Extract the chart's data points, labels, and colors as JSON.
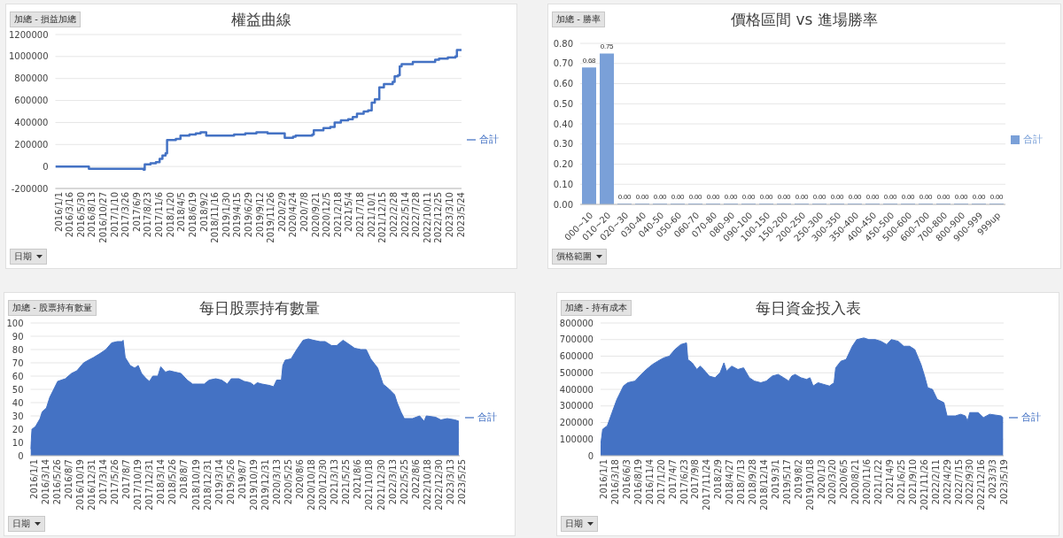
{
  "chart_data": [
    {
      "type": "step",
      "title": "權益曲線",
      "annotations": [
        "加總 - 損益加總",
        "日期"
      ],
      "legend": "right",
      "grid": "y",
      "xlim": [
        "2016-01-01",
        "2023-06-20"
      ],
      "xticks": [
        {
          "value": "2016-01-01",
          "label": "2016/1/1"
        },
        {
          "value": "2016-03-16",
          "label": "2016/3/16"
        },
        {
          "value": "2016-05-30",
          "label": "2016/5/30"
        },
        {
          "value": "2016-08-13",
          "label": "2016/8/13"
        },
        {
          "value": "2016-10-27",
          "label": "2016/10/27"
        },
        {
          "value": "2017-01-10",
          "label": "2017/1/10"
        },
        {
          "value": "2017-03-26",
          "label": "2017/3/26"
        },
        {
          "value": "2017-06-09",
          "label": "2017/6/9"
        },
        {
          "value": "2017-08-23",
          "label": "2017/8/23"
        },
        {
          "value": "2017-11-06",
          "label": "2017/11/6"
        },
        {
          "value": "2018-01-20",
          "label": "2018/1/20"
        },
        {
          "value": "2018-04-05",
          "label": "2018/4/5"
        },
        {
          "value": "2018-06-19",
          "label": "2018/6/19"
        },
        {
          "value": "2018-09-02",
          "label": "2018/9/2"
        },
        {
          "value": "2018-11-16",
          "label": "2018/11/16"
        },
        {
          "value": "2019-01-30",
          "label": "2019/1/30"
        },
        {
          "value": "2019-04-15",
          "label": "2019/4/15"
        },
        {
          "value": "2019-06-29",
          "label": "2019/6/29"
        },
        {
          "value": "2019-09-12",
          "label": "2019/9/12"
        },
        {
          "value": "2019-11-26",
          "label": "2019/11/26"
        },
        {
          "value": "2020-02-09",
          "label": "2020/2/9"
        },
        {
          "value": "2020-04-24",
          "label": "2020/4/24"
        },
        {
          "value": "2020-07-08",
          "label": "2020/7/8"
        },
        {
          "value": "2020-09-21",
          "label": "2020/9/21"
        },
        {
          "value": "2020-12-05",
          "label": "2020/12/5"
        },
        {
          "value": "2021-02-18",
          "label": "2021/2/18"
        },
        {
          "value": "2021-05-04",
          "label": "2021/5/4"
        },
        {
          "value": "2021-07-18",
          "label": "2021/7/18"
        },
        {
          "value": "2021-10-01",
          "label": "2021/10/1"
        },
        {
          "value": "2021-12-15",
          "label": "2021/12/15"
        },
        {
          "value": "2022-02-28",
          "label": "2022/2/28"
        },
        {
          "value": "2022-05-14",
          "label": "2022/5/14"
        },
        {
          "value": "2022-07-28",
          "label": "2022/7/28"
        },
        {
          "value": "2022-10-11",
          "label": "2022/10/11"
        },
        {
          "value": "2022-12-25",
          "label": "2022/12/25"
        },
        {
          "value": "2023-03-10",
          "label": "2023/3/10"
        },
        {
          "value": "2023-05-24",
          "label": "2023/5/24"
        }
      ],
      "ylim": [
        -200000,
        1200000
      ],
      "yticks": [
        -200000,
        0,
        200000,
        400000,
        600000,
        800000,
        1000000,
        1200000
      ],
      "series": [
        {
          "name": "合計",
          "color": "#4472c4",
          "x": [
            "2016-01-01",
            "2016-05-01",
            "2016-08-13",
            "2017-03-26",
            "2017-06-09",
            "2017-08-15",
            "2017-08-23",
            "2017-10-01",
            "2017-11-06",
            "2017-12-01",
            "2017-12-20",
            "2018-01-10",
            "2018-01-20",
            "2018-03-20",
            "2018-04-20",
            "2018-06-19",
            "2018-08-01",
            "2018-09-02",
            "2018-10-10",
            "2018-11-16",
            "2019-04-15",
            "2019-06-29",
            "2019-09-12",
            "2019-11-26",
            "2020-02-20",
            "2020-03-20",
            "2020-05-15",
            "2020-06-01",
            "2020-09-21",
            "2020-10-01",
            "2020-12-05",
            "2021-01-20",
            "2021-02-18",
            "2021-04-01",
            "2021-05-20",
            "2021-06-20",
            "2021-07-18",
            "2021-09-01",
            "2021-10-01",
            "2021-10-25",
            "2021-11-15",
            "2021-12-15",
            "2022-01-15",
            "2022-03-15",
            "2022-03-28",
            "2022-04-20",
            "2022-05-01",
            "2022-05-14",
            "2022-07-28",
            "2022-10-11",
            "2022-12-25",
            "2023-01-20",
            "2023-03-20",
            "2023-05-10",
            "2023-05-20",
            "2023-06-20"
          ],
          "values": [
            0,
            0,
            -20000,
            -20000,
            -20000,
            -30000,
            20000,
            30000,
            40000,
            70000,
            100000,
            120000,
            240000,
            250000,
            280000,
            290000,
            300000,
            310000,
            280000,
            280000,
            290000,
            300000,
            310000,
            300000,
            300000,
            260000,
            270000,
            280000,
            290000,
            330000,
            350000,
            360000,
            400000,
            420000,
            430000,
            450000,
            480000,
            500000,
            510000,
            580000,
            610000,
            720000,
            750000,
            770000,
            820000,
            830000,
            910000,
            930000,
            950000,
            950000,
            970000,
            980000,
            990000,
            1000000,
            1060000,
            1060000
          ]
        }
      ]
    },
    {
      "type": "bar",
      "title": "價格區間 vs 進場勝率",
      "annotations": [
        "加總 - 勝率",
        "價格範圍"
      ],
      "legend": "right",
      "grid": "y",
      "categories": [
        "000~10",
        "010~20",
        "020~30",
        "030-40",
        "040-50",
        "050-60",
        "060-70",
        "070-80",
        "080-90",
        "090-100",
        "100-150",
        "150-200",
        "200-250",
        "250-300",
        "300-350",
        "350-400",
        "400-450",
        "450-500",
        "500-600",
        "600-700",
        "700-800",
        "800-900",
        "900-999",
        "999up"
      ],
      "ylim": [
        0,
        0.8
      ],
      "yticks": [
        {
          "value": 0,
          "label": "0.00"
        },
        {
          "value": 0.1,
          "label": "0.10"
        },
        {
          "value": 0.2,
          "label": "0.20"
        },
        {
          "value": 0.3,
          "label": "0.30"
        },
        {
          "value": 0.4,
          "label": "0.40"
        },
        {
          "value": 0.5,
          "label": "0.50"
        },
        {
          "value": 0.6,
          "label": "0.60"
        },
        {
          "value": 0.7,
          "label": "0.70"
        },
        {
          "value": 0.8,
          "label": "0.80"
        }
      ],
      "series": [
        {
          "name": "合計",
          "color": "#7aa0d8",
          "values": [
            0.68,
            0.75,
            0,
            0,
            0,
            0,
            0,
            0,
            0,
            0,
            0,
            0,
            0,
            0,
            0,
            0,
            0,
            0,
            0,
            0,
            0,
            0,
            0,
            0
          ],
          "value_labels": [
            "0.68",
            "0.75",
            "0.00",
            "0.00",
            "0.00",
            "0.00",
            "0.00",
            "0.00",
            "0.00",
            "0.00",
            "0.00",
            "0.00",
            "0.00",
            "0.00",
            "0.00",
            "0.00",
            "0.00",
            "0.00",
            "0.00",
            "0.00",
            "0.00",
            "0.00",
            "0.00",
            "0.00"
          ]
        }
      ]
    },
    {
      "type": "area",
      "title": "每日股票持有數量",
      "annotations": [
        "加總 - 股票持有數量",
        "日期"
      ],
      "legend": "right",
      "grid": "y",
      "xlim": [
        "2016-01-01",
        "2023-05-31"
      ],
      "xticks": [
        {
          "value": "2016-01-01",
          "label": "2016/1/1"
        },
        {
          "value": "2016-03-14",
          "label": "2016/3/14"
        },
        {
          "value": "2016-05-26",
          "label": "2016/5/26"
        },
        {
          "value": "2016-08-07",
          "label": "2016/8/7"
        },
        {
          "value": "2016-10-19",
          "label": "2016/10/19"
        },
        {
          "value": "2016-12-31",
          "label": "2016/12/31"
        },
        {
          "value": "2017-03-14",
          "label": "2017/3/14"
        },
        {
          "value": "2017-05-26",
          "label": "2017/5/26"
        },
        {
          "value": "2017-08-07",
          "label": "2017/8/7"
        },
        {
          "value": "2017-10-19",
          "label": "2017/10/19"
        },
        {
          "value": "2017-12-31",
          "label": "2017/12/31"
        },
        {
          "value": "2018-03-14",
          "label": "2018/3/14"
        },
        {
          "value": "2018-05-26",
          "label": "2018/5/26"
        },
        {
          "value": "2018-08-07",
          "label": "2018/8/7"
        },
        {
          "value": "2018-10-19",
          "label": "2018/10/19"
        },
        {
          "value": "2018-12-31",
          "label": "2018/12/31"
        },
        {
          "value": "2019-03-14",
          "label": "2019/3/14"
        },
        {
          "value": "2019-05-26",
          "label": "2019/5/26"
        },
        {
          "value": "2019-08-07",
          "label": "2019/8/7"
        },
        {
          "value": "2019-10-19",
          "label": "2019/10/19"
        },
        {
          "value": "2019-12-31",
          "label": "2019/12/31"
        },
        {
          "value": "2020-03-13",
          "label": "2020/3/13"
        },
        {
          "value": "2020-05-25",
          "label": "2020/5/25"
        },
        {
          "value": "2020-08-06",
          "label": "2020/8/6"
        },
        {
          "value": "2020-10-18",
          "label": "2020/10/18"
        },
        {
          "value": "2020-12-30",
          "label": "2020/12/30"
        },
        {
          "value": "2021-03-13",
          "label": "2021/3/13"
        },
        {
          "value": "2021-05-25",
          "label": "2021/5/25"
        },
        {
          "value": "2021-08-06",
          "label": "2021/8/6"
        },
        {
          "value": "2021-10-18",
          "label": "2021/10/18"
        },
        {
          "value": "2021-12-30",
          "label": "2021/12/30"
        },
        {
          "value": "2022-03-13",
          "label": "2022/3/13"
        },
        {
          "value": "2022-05-25",
          "label": "2022/5/25"
        },
        {
          "value": "2022-08-06",
          "label": "2022/8/6"
        },
        {
          "value": "2022-10-18",
          "label": "2022/10/18"
        },
        {
          "value": "2022-12-30",
          "label": "2022/12/30"
        },
        {
          "value": "2023-03-13",
          "label": "2023/3/13"
        },
        {
          "value": "2023-05-25",
          "label": "2023/5/25"
        }
      ],
      "ylim": [
        0,
        100
      ],
      "yticks": [
        0,
        10,
        20,
        30,
        40,
        50,
        60,
        70,
        80,
        90,
        100
      ],
      "series": [
        {
          "name": "合計",
          "color": "#4472c4",
          "x": [
            "2016-01-01",
            "2016-01-10",
            "2016-02-01",
            "2016-03-01",
            "2016-03-14",
            "2016-04-10",
            "2016-05-01",
            "2016-05-26",
            "2016-06-20",
            "2016-08-07",
            "2016-09-15",
            "2016-10-19",
            "2016-12-01",
            "2016-12-31",
            "2017-02-01",
            "2017-03-14",
            "2017-04-20",
            "2017-05-26",
            "2017-07-01",
            "2017-08-01",
            "2017-08-07",
            "2017-08-20",
            "2017-09-20",
            "2017-10-19",
            "2017-11-10",
            "2017-12-01",
            "2017-12-31",
            "2018-01-20",
            "2018-02-10",
            "2018-03-14",
            "2018-04-01",
            "2018-05-01",
            "2018-05-26",
            "2018-07-01",
            "2018-08-07",
            "2018-09-15",
            "2018-10-19",
            "2018-11-20",
            "2018-12-31",
            "2019-02-01",
            "2019-03-14",
            "2019-04-20",
            "2019-05-26",
            "2019-06-20",
            "2019-08-07",
            "2019-09-10",
            "2019-10-19",
            "2019-11-10",
            "2019-12-01",
            "2019-12-31",
            "2020-02-15",
            "2020-03-13",
            "2020-04-01",
            "2020-05-01",
            "2020-05-10",
            "2020-05-25",
            "2020-07-01",
            "2020-08-06",
            "2020-09-15",
            "2020-10-18",
            "2020-11-20",
            "2020-12-30",
            "2021-02-01",
            "2021-03-13",
            "2021-04-15",
            "2021-05-25",
            "2021-07-01",
            "2021-08-06",
            "2021-09-15",
            "2021-10-18",
            "2021-11-15",
            "2021-12-30",
            "2022-02-01",
            "2022-03-13",
            "2022-04-15",
            "2022-05-01",
            "2022-05-25",
            "2022-06-15",
            "2022-08-06",
            "2022-09-20",
            "2022-10-18",
            "2022-11-01",
            "2022-12-30",
            "2023-02-01",
            "2023-03-13",
            "2023-05-01",
            "2023-05-25"
          ],
          "values": [
            5,
            20,
            22,
            28,
            33,
            36,
            44,
            50,
            56,
            58,
            62,
            64,
            70,
            72,
            74,
            77,
            80,
            85,
            86,
            86,
            87,
            74,
            68,
            66,
            68,
            62,
            58,
            56,
            60,
            60,
            67,
            63,
            64,
            63,
            62,
            57,
            54,
            54,
            54,
            57,
            58,
            57,
            54,
            58,
            58,
            56,
            55,
            53,
            55,
            54,
            53,
            52,
            57,
            57,
            68,
            72,
            73,
            80,
            87,
            88,
            87,
            86,
            86,
            83,
            83,
            87,
            84,
            81,
            80,
            80,
            73,
            66,
            54,
            50,
            46,
            40,
            33,
            28,
            28,
            30,
            26,
            30,
            29,
            27,
            28,
            27,
            26
          ]
        }
      ]
    },
    {
      "type": "area",
      "title": "每日資金投入表",
      "annotations": [
        "加總 - 持有成本",
        "日期"
      ],
      "legend": "right",
      "grid": "y",
      "xlim": [
        "2016-01-01",
        "2023-06-05"
      ],
      "xticks": [
        {
          "value": "2016-01-01",
          "label": "2016/1/1"
        },
        {
          "value": "2016-03-18",
          "label": "2016/3/18"
        },
        {
          "value": "2016-06-03",
          "label": "2016/6/3"
        },
        {
          "value": "2016-08-19",
          "label": "2016/8/19"
        },
        {
          "value": "2016-11-04",
          "label": "2016/11/4"
        },
        {
          "value": "2017-01-20",
          "label": "2017/1/20"
        },
        {
          "value": "2017-04-07",
          "label": "2017/4/7"
        },
        {
          "value": "2017-06-23",
          "label": "2017/6/23"
        },
        {
          "value": "2017-09-08",
          "label": "2017/9/8"
        },
        {
          "value": "2017-11-24",
          "label": "2017/11/24"
        },
        {
          "value": "2018-02-09",
          "label": "2018/2/9"
        },
        {
          "value": "2018-04-27",
          "label": "2018/4/27"
        },
        {
          "value": "2018-07-13",
          "label": "2018/7/13"
        },
        {
          "value": "2018-09-28",
          "label": "2018/9/28"
        },
        {
          "value": "2018-12-14",
          "label": "2018/12/14"
        },
        {
          "value": "2019-03-01",
          "label": "2019/3/1"
        },
        {
          "value": "2019-05-17",
          "label": "2019/5/17"
        },
        {
          "value": "2019-08-02",
          "label": "2019/8/2"
        },
        {
          "value": "2019-10-18",
          "label": "2019/10/18"
        },
        {
          "value": "2020-01-03",
          "label": "2020/1/3"
        },
        {
          "value": "2020-03-20",
          "label": "2020/3/20"
        },
        {
          "value": "2020-06-05",
          "label": "2020/6/5"
        },
        {
          "value": "2020-08-21",
          "label": "2020/8/21"
        },
        {
          "value": "2020-11-06",
          "label": "2020/11/6"
        },
        {
          "value": "2021-01-22",
          "label": "2021/1/22"
        },
        {
          "value": "2021-04-09",
          "label": "2021/4/9"
        },
        {
          "value": "2021-06-25",
          "label": "2021/6/25"
        },
        {
          "value": "2021-09-10",
          "label": "2021/9/10"
        },
        {
          "value": "2021-11-26",
          "label": "2021/11/26"
        },
        {
          "value": "2022-02-11",
          "label": "2022/2/11"
        },
        {
          "value": "2022-04-29",
          "label": "2022/4/29"
        },
        {
          "value": "2022-07-15",
          "label": "2022/7/15"
        },
        {
          "value": "2022-09-30",
          "label": "2022/9/30"
        },
        {
          "value": "2022-12-16",
          "label": "2022/12/16"
        },
        {
          "value": "2023-03-03",
          "label": "2023/3/3"
        },
        {
          "value": "2023-05-19",
          "label": "2023/5/19"
        }
      ],
      "ylim": [
        0,
        800000
      ],
      "yticks": [
        0,
        100000,
        200000,
        300000,
        400000,
        500000,
        600000,
        700000,
        800000
      ],
      "series": [
        {
          "name": "合計",
          "color": "#4472c4",
          "x": [
            "2016-01-01",
            "2016-01-15",
            "2016-02-15",
            "2016-03-18",
            "2016-04-20",
            "2016-06-03",
            "2016-07-01",
            "2016-08-19",
            "2016-09-20",
            "2016-11-04",
            "2016-12-15",
            "2017-01-20",
            "2017-03-01",
            "2017-04-07",
            "2017-05-15",
            "2017-06-23",
            "2017-08-01",
            "2017-08-10",
            "2017-09-08",
            "2017-10-10",
            "2017-11-01",
            "2017-11-24",
            "2018-01-01",
            "2018-02-09",
            "2018-03-15",
            "2018-04-10",
            "2018-04-27",
            "2018-06-01",
            "2018-07-13",
            "2018-08-20",
            "2018-09-28",
            "2018-11-01",
            "2018-12-14",
            "2019-01-20",
            "2019-03-01",
            "2019-04-10",
            "2019-05-17",
            "2019-06-20",
            "2019-07-10",
            "2019-08-02",
            "2019-09-10",
            "2019-10-18",
            "2019-11-10",
            "2019-12-01",
            "2020-01-03",
            "2020-02-10",
            "2020-03-20",
            "2020-04-20",
            "2020-05-01",
            "2020-06-05",
            "2020-07-10",
            "2020-08-21",
            "2020-09-20",
            "2020-11-06",
            "2020-12-10",
            "2021-01-22",
            "2021-03-01",
            "2021-04-09",
            "2021-05-10",
            "2021-06-25",
            "2021-08-01",
            "2021-09-10",
            "2021-10-15",
            "2021-11-26",
            "2021-12-20",
            "2022-01-10",
            "2022-02-11",
            "2022-03-15",
            "2022-04-29",
            "2022-05-20",
            "2022-07-15",
            "2022-08-20",
            "2022-09-20",
            "2022-10-05",
            "2022-10-20",
            "2022-12-16",
            "2023-01-20",
            "2023-03-03",
            "2023-05-19",
            "2023-06-01"
          ],
          "values": [
            60000,
            160000,
            180000,
            260000,
            340000,
            420000,
            440000,
            450000,
            480000,
            520000,
            550000,
            570000,
            590000,
            600000,
            640000,
            670000,
            680000,
            580000,
            560000,
            520000,
            540000,
            520000,
            480000,
            470000,
            500000,
            560000,
            510000,
            540000,
            520000,
            530000,
            470000,
            450000,
            440000,
            450000,
            480000,
            490000,
            470000,
            450000,
            480000,
            490000,
            470000,
            460000,
            470000,
            420000,
            440000,
            430000,
            420000,
            440000,
            530000,
            570000,
            580000,
            660000,
            700000,
            710000,
            700000,
            700000,
            690000,
            670000,
            700000,
            690000,
            660000,
            660000,
            640000,
            550000,
            480000,
            410000,
            400000,
            340000,
            320000,
            240000,
            240000,
            250000,
            240000,
            210000,
            260000,
            260000,
            230000,
            250000,
            240000,
            230000
          ]
        }
      ]
    }
  ]
}
